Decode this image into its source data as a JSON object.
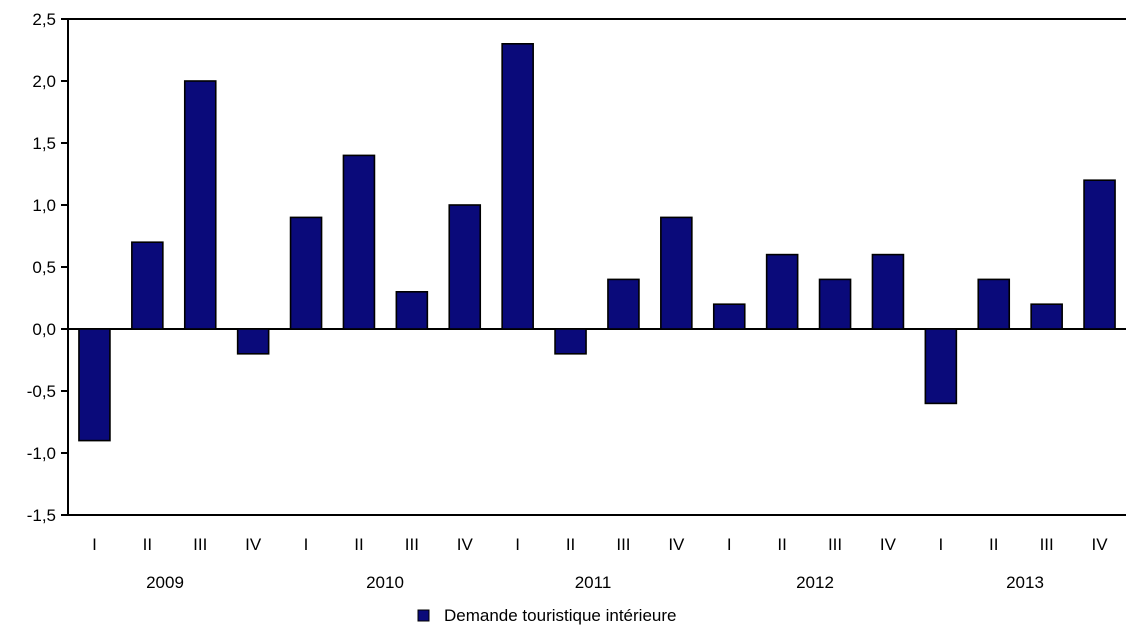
{
  "chart_data": {
    "type": "bar",
    "title": "",
    "xlabel": "",
    "ylabel": "",
    "ylim": [
      -1.5,
      2.5
    ],
    "yticks": [
      2.5,
      2.0,
      1.5,
      1.0,
      0.5,
      0.0,
      -0.5,
      -1.0,
      -1.5
    ],
    "ytick_labels": [
      "2,5",
      "2,0",
      "1,5",
      "1,0",
      "0,5",
      "0,0",
      "-0,5",
      "-1,0",
      "-1,5"
    ],
    "categories": [
      "I",
      "II",
      "III",
      "IV",
      "I",
      "II",
      "III",
      "IV",
      "I",
      "II",
      "III",
      "IV",
      "I",
      "II",
      "III",
      "IV",
      "I",
      "II",
      "III",
      "IV"
    ],
    "years": [
      "2009",
      "2010",
      "2011",
      "2012",
      "2013"
    ],
    "series": [
      {
        "name": "Demande touristique intérieure",
        "color": "#0a0a7a",
        "values": [
          -0.9,
          0.7,
          2.0,
          -0.2,
          0.9,
          1.4,
          0.3,
          1.0,
          2.3,
          -0.2,
          0.4,
          0.9,
          0.2,
          0.6,
          0.4,
          0.6,
          -0.6,
          0.4,
          0.2,
          1.2
        ]
      }
    ],
    "grid": false,
    "legend": {
      "position": "bottom-center",
      "label": "Demande touristique intérieure"
    }
  }
}
